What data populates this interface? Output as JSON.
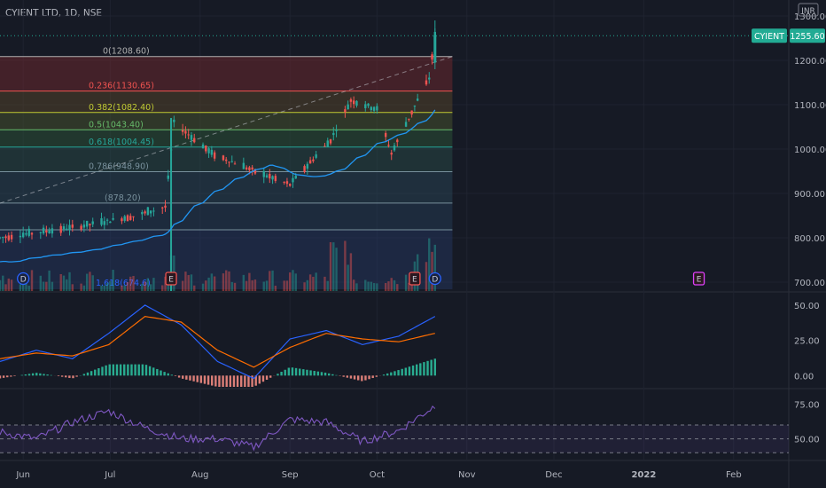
{
  "header": {
    "symbol_title": "CYIENT LTD, 1D, NSE",
    "currency": "INR"
  },
  "price_tag": {
    "symbol": "CYIENT",
    "value": "1255.60",
    "color": "#22ab94"
  },
  "colors": {
    "up": "#26a69a",
    "down": "#ef5350",
    "ma": "#2196f3",
    "macd": "#2962ff",
    "signal": "#ff6d00",
    "rsi": "#7e57c2",
    "background": "#161a25",
    "grid": "#2a2e39",
    "event_earnings": "#e040fb",
    "event_dividend": "#2962ff"
  },
  "chart_data": [
    {
      "type": "candlestick",
      "title": "CYIENT LTD, 1D, NSE",
      "x": {
        "tick_labels": [
          "Jun",
          "Jul",
          "Aug",
          "Sep",
          "Oct",
          "Nov",
          "Dec",
          "2022",
          "Feb"
        ],
        "range": [
          "2021-05-24",
          "2022-02-20"
        ]
      },
      "y": {
        "unit": "INR",
        "range": [
          680,
          1320
        ],
        "tick_labels": [
          "700.00",
          "800.00",
          "900.00",
          "1000.00",
          "1100.00",
          "1200.00",
          "1300.00"
        ]
      },
      "grid": true,
      "ohlc_monthly": [
        {
          "period": "Jun",
          "open": 800,
          "high": 845,
          "low": 785,
          "close": 830
        },
        {
          "period": "Jul-early",
          "open": 830,
          "high": 878,
          "low": 820,
          "close": 860
        },
        {
          "period": "Jul-late",
          "open": 870,
          "high": 1065,
          "low": 860,
          "close": 995
        },
        {
          "period": "Aug",
          "open": 995,
          "high": 1005,
          "low": 920,
          "close": 950
        },
        {
          "period": "Sep",
          "open": 950,
          "high": 1145,
          "low": 930,
          "close": 1100
        },
        {
          "period": "Oct-early",
          "open": 1100,
          "high": 1120,
          "low": 990,
          "close": 1090
        },
        {
          "period": "Oct-late",
          "open": 1090,
          "high": 1290,
          "low": 1080,
          "close": 1255.6
        }
      ],
      "moving_average_end": 1040,
      "fibonacci": [
        {
          "ratio": "0",
          "label": "0(1208.60)",
          "price": 1208.6,
          "color": "#b0b0b0"
        },
        {
          "ratio": "0.236",
          "label": "0.236(1130.65)",
          "price": 1130.65,
          "color": "#ef5350"
        },
        {
          "ratio": "0.382",
          "label": "0.382(1082.40)",
          "price": 1082.4,
          "color": "#c0ca33"
        },
        {
          "ratio": "0.5",
          "label": "0.5(1043.40)",
          "price": 1043.4,
          "color": "#66bb6a"
        },
        {
          "ratio": "0.618",
          "label": "0.618(1004.45)",
          "price": 1004.45,
          "color": "#26a69a"
        },
        {
          "ratio": "0.786",
          "label": "0.786(948.90)",
          "price": 948.9,
          "color": "#78909c"
        },
        {
          "ratio": "1",
          "label": "(878.20)",
          "price": 878.2,
          "color": "#78909c"
        },
        {
          "ratio": "1.272",
          "label": "",
          "price": 818,
          "color": "#78909c"
        },
        {
          "ratio": "1.618",
          "label": "1.618(674.6)",
          "price": 674.6,
          "color": "#2962ff"
        }
      ],
      "events": [
        {
          "label": "D",
          "type": "dividend",
          "date": "Jun-01"
        },
        {
          "label": "E",
          "type": "earnings",
          "date": "Jul-22"
        },
        {
          "label": "E",
          "type": "earnings",
          "date": "Oct-14"
        },
        {
          "label": "D",
          "type": "dividend",
          "date": "Oct-21"
        },
        {
          "label": "E",
          "type": "earnings",
          "date": "Jan-20"
        }
      ]
    },
    {
      "type": "line",
      "name": "MACD",
      "y": {
        "range": [
          -8,
          55
        ],
        "tick_labels": [
          "0.00",
          "25.00",
          "50.00"
        ]
      },
      "series": [
        {
          "values": [
            10,
            18,
            12,
            30,
            50,
            36,
            10,
            -2,
            26,
            32,
            22,
            28,
            42
          ]
        },
        {
          "values": [
            12,
            16,
            14,
            22,
            42,
            38,
            18,
            6,
            20,
            30,
            26,
            24,
            30
          ]
        }
      ],
      "histogram": [
        -2,
        2,
        -2,
        8,
        8,
        -2,
        -8,
        -8,
        6,
        2,
        -4,
        4,
        12
      ]
    },
    {
      "type": "line",
      "name": "RSI",
      "y": {
        "range": [
          35,
          85
        ],
        "tick_labels": [
          "50.00",
          "75.00"
        ]
      },
      "series": [
        {
          "values": [
            55,
            50,
            62,
            70,
            58,
            50,
            50,
            44,
            64,
            62,
            48,
            56,
            74
          ]
        }
      ],
      "band": [
        40,
        60
      ],
      "mid": 50
    }
  ]
}
